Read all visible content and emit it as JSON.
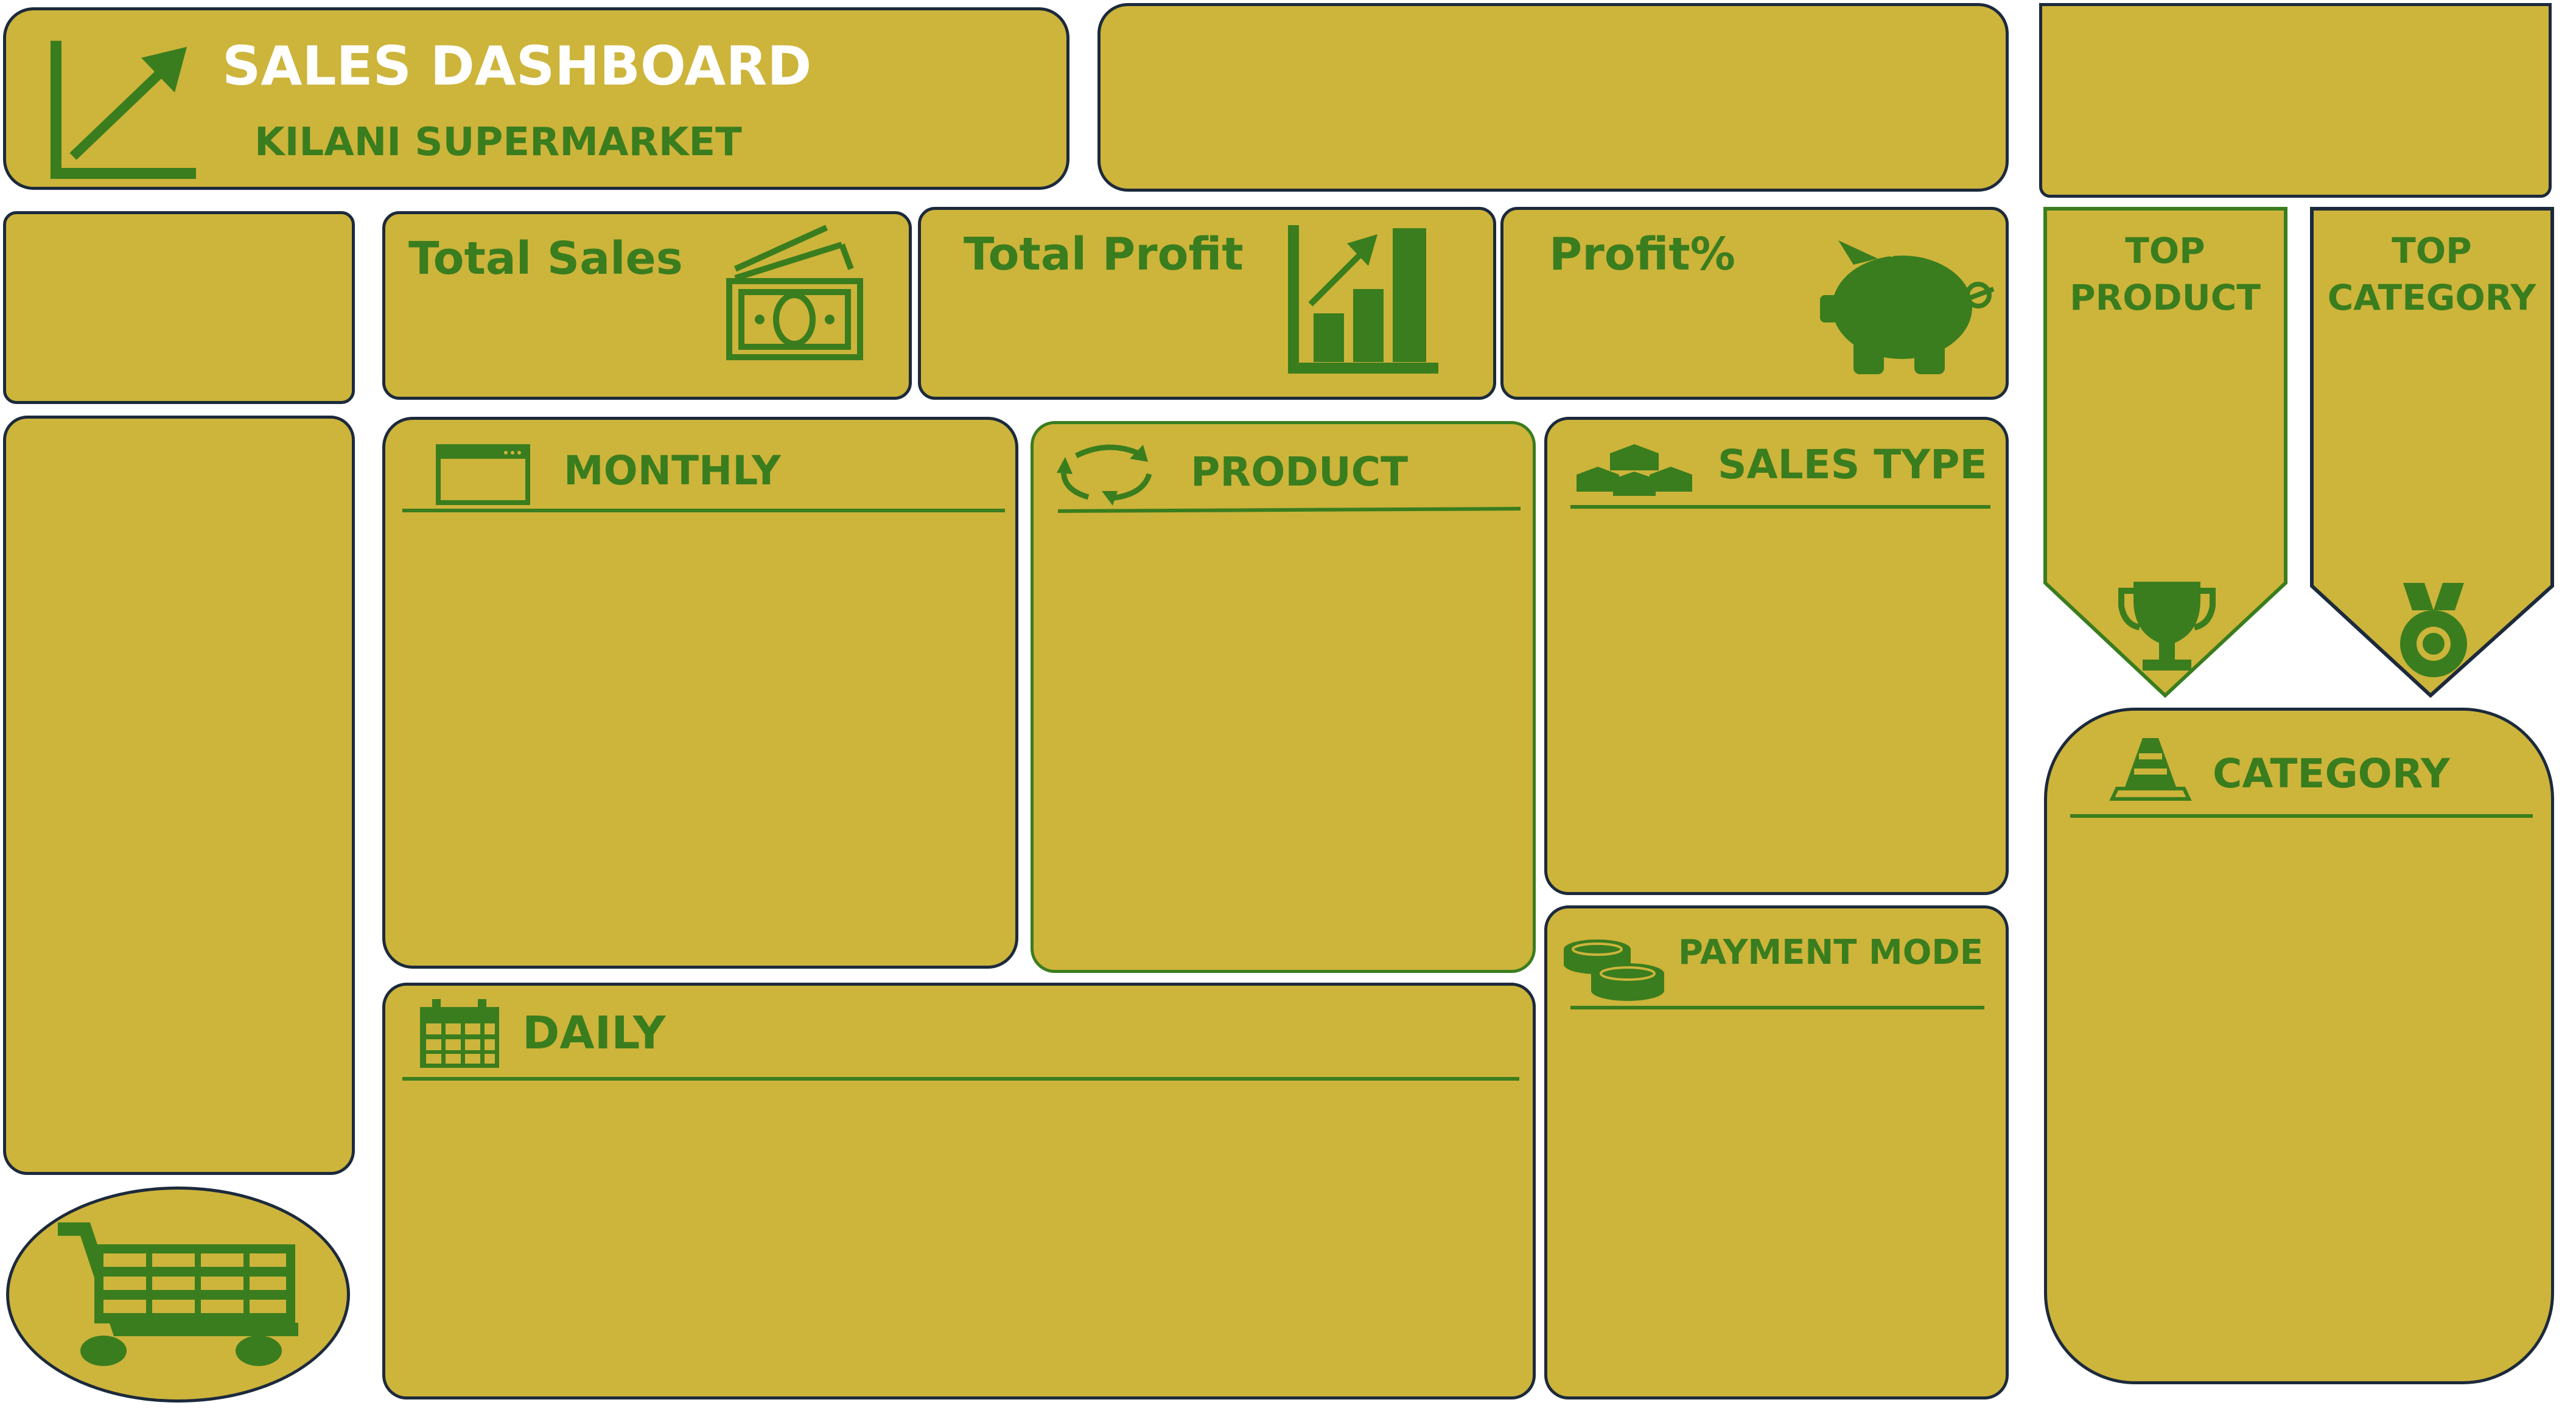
{
  "colors": {
    "panel": "#cdb43b",
    "accent": "#3a7d1e",
    "border": "#1c2a3c",
    "title": "#ffffff"
  },
  "header": {
    "title": "SALES DASHBOARD",
    "subtitle": "KILANI SUPERMARKET",
    "icon": "trend-arrow-icon"
  },
  "kpis": [
    {
      "label": "Total Sales",
      "icon": "money-bills-icon"
    },
    {
      "label": "Total Profit",
      "icon": "bar-chart-growth-icon"
    },
    {
      "label": "Profit%",
      "icon": "piggy-bank-icon"
    }
  ],
  "sections": {
    "monthly": {
      "title": "MONTHLY",
      "icon": "browser-window-icon"
    },
    "product": {
      "title": "PRODUCT",
      "icon": "refresh-cycle-icon"
    },
    "sales_type": {
      "title": "SALES TYPE",
      "icon": "blocks-network-icon"
    },
    "daily": {
      "title": "DAILY",
      "icon": "calendar-icon"
    },
    "payment_mode": {
      "title": "PAYMENT MODE",
      "icon": "coins-icon"
    },
    "category": {
      "title": "CATEGORY",
      "icon": "traffic-cone-icon"
    }
  },
  "top_cards": [
    {
      "label_line1": "TOP",
      "label_line2": "PRODUCT",
      "icon": "trophy-icon"
    },
    {
      "label_line1": "TOP",
      "label_line2": "CATEGORY",
      "icon": "medal-icon"
    }
  ],
  "cart": {
    "icon": "shopping-cart-icon"
  }
}
